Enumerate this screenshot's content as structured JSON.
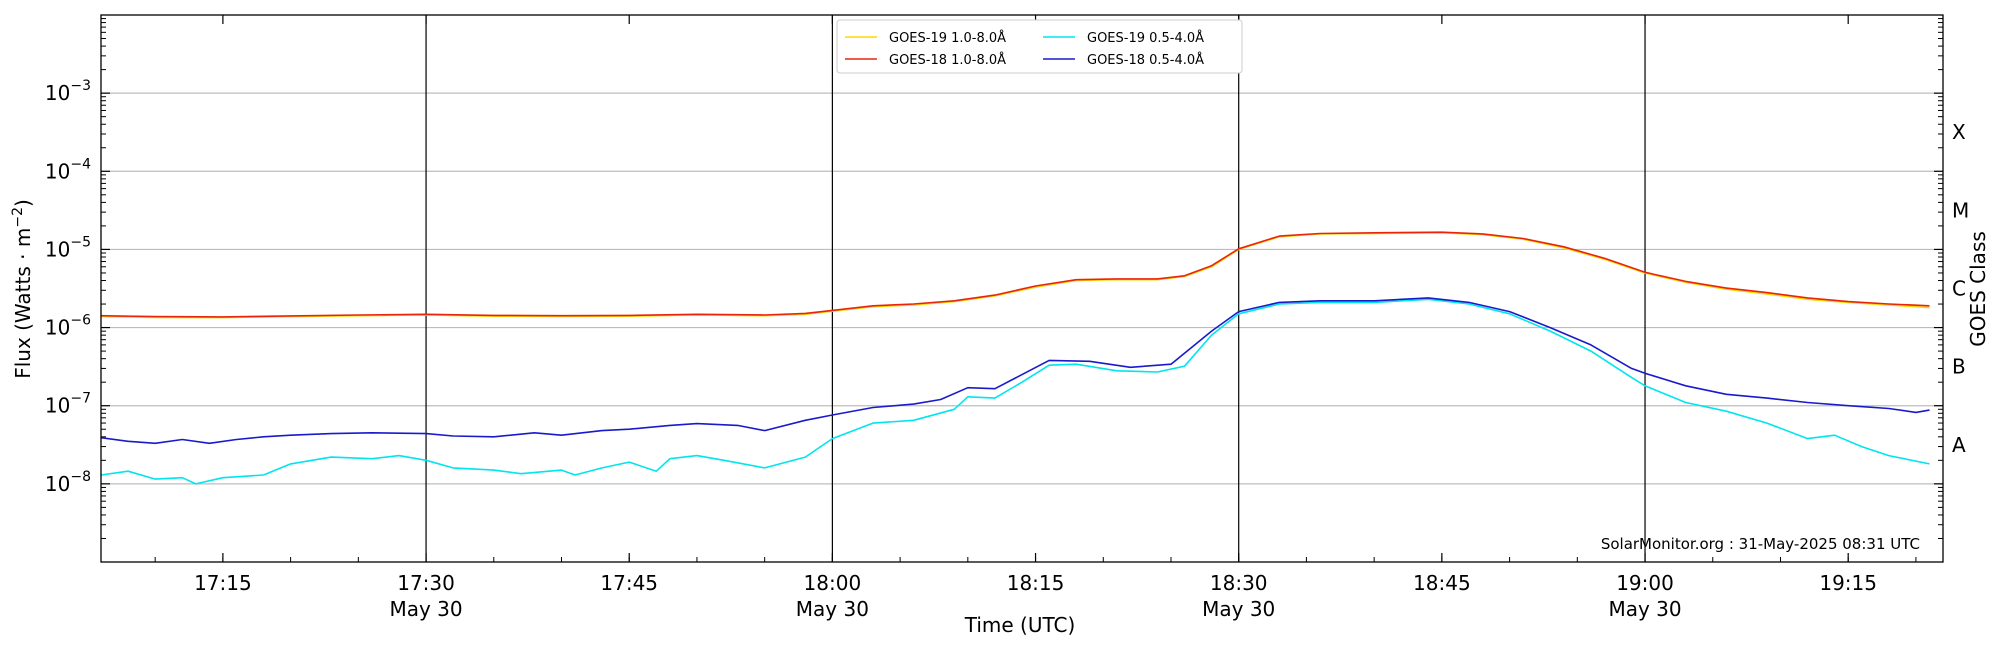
{
  "chart_data": {
    "type": "line",
    "xlabel": "Time (UTC)",
    "ylabel_main": "Flux (Watts · m",
    "ylabel_sup": "−2",
    "ylabel_close": ")",
    "right_label": "GOES Class",
    "credit": "SolarMonitor.org : 31-May-2025 08:31 UTC",
    "y_scale": "log",
    "ylim": [
      1e-09,
      0.01
    ],
    "xlim": [
      "17:06",
      "19:22"
    ],
    "grid": "horizontal at each decade",
    "legend_position": "top-center",
    "y_ticks": [
      {
        "value": 1e-08,
        "base": "10",
        "exp": "−8"
      },
      {
        "value": 1e-07,
        "base": "10",
        "exp": "−7"
      },
      {
        "value": 1e-06,
        "base": "10",
        "exp": "−6"
      },
      {
        "value": 1e-05,
        "base": "10",
        "exp": "−5"
      },
      {
        "value": 0.0001,
        "base": "10",
        "exp": "−4"
      },
      {
        "value": 0.001,
        "base": "10",
        "exp": "−3"
      }
    ],
    "x_ticks": [
      {
        "time": "17:15",
        "label": "17:15",
        "date": ""
      },
      {
        "time": "17:30",
        "label": "17:30",
        "date": "May 30"
      },
      {
        "time": "17:45",
        "label": "17:45",
        "date": ""
      },
      {
        "time": "18:00",
        "label": "18:00",
        "date": "May 30"
      },
      {
        "time": "18:15",
        "label": "18:15",
        "date": ""
      },
      {
        "time": "18:30",
        "label": "18:30",
        "date": "May 30"
      },
      {
        "time": "18:45",
        "label": "18:45",
        "date": ""
      },
      {
        "time": "19:00",
        "label": "19:00",
        "date": "May 30"
      },
      {
        "time": "19:15",
        "label": "19:15",
        "date": ""
      }
    ],
    "vertical_lines": [
      "17:30",
      "18:00",
      "18:30",
      "19:00"
    ],
    "goes_classes": [
      {
        "label": "A",
        "value": 3.16e-08
      },
      {
        "label": "B",
        "value": 3.16e-07
      },
      {
        "label": "C",
        "value": 3.16e-06
      },
      {
        "label": "M",
        "value": 3.16e-05
      },
      {
        "label": "X",
        "value": 0.000316
      }
    ],
    "series": [
      {
        "name": "GOES-19 1.0-8.0Å",
        "color": "#ffd700",
        "points": [
          [
            "17:06",
            1.38e-06
          ],
          [
            "17:10",
            1.35e-06
          ],
          [
            "17:15",
            1.34e-06
          ],
          [
            "17:20",
            1.38e-06
          ],
          [
            "17:25",
            1.42e-06
          ],
          [
            "17:30",
            1.45e-06
          ],
          [
            "17:35",
            1.4e-06
          ],
          [
            "17:40",
            1.39e-06
          ],
          [
            "17:45",
            1.4e-06
          ],
          [
            "17:50",
            1.45e-06
          ],
          [
            "17:55",
            1.42e-06
          ],
          [
            "17:58",
            1.48e-06
          ],
          [
            "18:00",
            1.62e-06
          ],
          [
            "18:03",
            1.85e-06
          ],
          [
            "18:06",
            1.95e-06
          ],
          [
            "18:09",
            2.15e-06
          ],
          [
            "18:12",
            2.55e-06
          ],
          [
            "18:15",
            3.3e-06
          ],
          [
            "18:18",
            4e-06
          ],
          [
            "18:21",
            4.1e-06
          ],
          [
            "18:24",
            4.1e-06
          ],
          [
            "18:26",
            4.5e-06
          ],
          [
            "18:28",
            6e-06
          ],
          [
            "18:30",
            1e-05
          ],
          [
            "18:33",
            1.45e-05
          ],
          [
            "18:36",
            1.58e-05
          ],
          [
            "18:40",
            1.6e-05
          ],
          [
            "18:45",
            1.63e-05
          ],
          [
            "18:48",
            1.55e-05
          ],
          [
            "18:51",
            1.35e-05
          ],
          [
            "18:54",
            1.05e-05
          ],
          [
            "18:57",
            7.5e-06
          ],
          [
            "19:00",
            5e-06
          ],
          [
            "19:03",
            3.8e-06
          ],
          [
            "19:06",
            3.1e-06
          ],
          [
            "19:09",
            2.7e-06
          ],
          [
            "19:12",
            2.3e-06
          ],
          [
            "19:15",
            2.1e-06
          ],
          [
            "19:18",
            1.95e-06
          ],
          [
            "19:21",
            1.8e-06
          ]
        ]
      },
      {
        "name": "GOES-18 1.0-8.0Å",
        "color": "#e8250c",
        "points": [
          [
            "17:06",
            1.42e-06
          ],
          [
            "17:10",
            1.38e-06
          ],
          [
            "17:15",
            1.37e-06
          ],
          [
            "17:20",
            1.41e-06
          ],
          [
            "17:25",
            1.45e-06
          ],
          [
            "17:30",
            1.48e-06
          ],
          [
            "17:35",
            1.43e-06
          ],
          [
            "17:40",
            1.42e-06
          ],
          [
            "17:45",
            1.43e-06
          ],
          [
            "17:50",
            1.48e-06
          ],
          [
            "17:55",
            1.45e-06
          ],
          [
            "17:58",
            1.52e-06
          ],
          [
            "18:00",
            1.66e-06
          ],
          [
            "18:03",
            1.9e-06
          ],
          [
            "18:06",
            2e-06
          ],
          [
            "18:09",
            2.2e-06
          ],
          [
            "18:12",
            2.6e-06
          ],
          [
            "18:15",
            3.4e-06
          ],
          [
            "18:18",
            4.1e-06
          ],
          [
            "18:21",
            4.2e-06
          ],
          [
            "18:24",
            4.2e-06
          ],
          [
            "18:26",
            4.6e-06
          ],
          [
            "18:28",
            6.2e-06
          ],
          [
            "18:30",
            1.02e-05
          ],
          [
            "18:33",
            1.48e-05
          ],
          [
            "18:36",
            1.6e-05
          ],
          [
            "18:40",
            1.63e-05
          ],
          [
            "18:45",
            1.66e-05
          ],
          [
            "18:48",
            1.58e-05
          ],
          [
            "18:51",
            1.38e-05
          ],
          [
            "18:54",
            1.08e-05
          ],
          [
            "18:57",
            7.7e-06
          ],
          [
            "19:00",
            5.1e-06
          ],
          [
            "19:03",
            3.9e-06
          ],
          [
            "19:06",
            3.2e-06
          ],
          [
            "19:09",
            2.8e-06
          ],
          [
            "19:12",
            2.4e-06
          ],
          [
            "19:15",
            2.15e-06
          ],
          [
            "19:18",
            2e-06
          ],
          [
            "19:21",
            1.9e-06
          ]
        ]
      },
      {
        "name": "GOES-19 0.5-4.0Å",
        "color": "#00e5ee",
        "points": [
          [
            "17:06",
            1.3e-08
          ],
          [
            "17:08",
            1.45e-08
          ],
          [
            "17:10",
            1.15e-08
          ],
          [
            "17:12",
            1.2e-08
          ],
          [
            "17:13",
            1e-08
          ],
          [
            "17:15",
            1.2e-08
          ],
          [
            "17:18",
            1.3e-08
          ],
          [
            "17:20",
            1.8e-08
          ],
          [
            "17:23",
            2.2e-08
          ],
          [
            "17:26",
            2.1e-08
          ],
          [
            "17:28",
            2.3e-08
          ],
          [
            "17:30",
            2e-08
          ],
          [
            "17:32",
            1.6e-08
          ],
          [
            "17:35",
            1.5e-08
          ],
          [
            "17:37",
            1.35e-08
          ],
          [
            "17:40",
            1.5e-08
          ],
          [
            "17:41",
            1.3e-08
          ],
          [
            "17:43",
            1.6e-08
          ],
          [
            "17:45",
            1.9e-08
          ],
          [
            "17:47",
            1.45e-08
          ],
          [
            "17:48",
            2.1e-08
          ],
          [
            "17:50",
            2.3e-08
          ],
          [
            "17:52",
            2e-08
          ],
          [
            "17:55",
            1.6e-08
          ],
          [
            "17:58",
            2.2e-08
          ],
          [
            "18:00",
            3.8e-08
          ],
          [
            "18:03",
            6e-08
          ],
          [
            "18:06",
            6.5e-08
          ],
          [
            "18:09",
            9e-08
          ],
          [
            "18:10",
            1.3e-07
          ],
          [
            "18:12",
            1.25e-07
          ],
          [
            "18:14",
            2e-07
          ],
          [
            "18:16",
            3.3e-07
          ],
          [
            "18:18",
            3.4e-07
          ],
          [
            "18:21",
            2.8e-07
          ],
          [
            "18:24",
            2.7e-07
          ],
          [
            "18:26",
            3.2e-07
          ],
          [
            "18:28",
            8e-07
          ],
          [
            "18:30",
            1.5e-06
          ],
          [
            "18:33",
            2e-06
          ],
          [
            "18:36",
            2.1e-06
          ],
          [
            "18:40",
            2.1e-06
          ],
          [
            "18:44",
            2.3e-06
          ],
          [
            "18:47",
            2e-06
          ],
          [
            "18:50",
            1.5e-06
          ],
          [
            "18:53",
            9e-07
          ],
          [
            "18:56",
            5e-07
          ],
          [
            "18:59",
            2.3e-07
          ],
          [
            "19:00",
            1.8e-07
          ],
          [
            "19:03",
            1.1e-07
          ],
          [
            "19:06",
            8.5e-08
          ],
          [
            "19:09",
            6e-08
          ],
          [
            "19:12",
            3.8e-08
          ],
          [
            "19:14",
            4.2e-08
          ],
          [
            "19:16",
            3e-08
          ],
          [
            "19:18",
            2.3e-08
          ],
          [
            "19:21",
            1.8e-08
          ]
        ]
      },
      {
        "name": "GOES-18 0.5-4.0Å",
        "color": "#1a1acd",
        "points": [
          [
            "17:06",
            3.9e-08
          ],
          [
            "17:08",
            3.5e-08
          ],
          [
            "17:10",
            3.3e-08
          ],
          [
            "17:12",
            3.7e-08
          ],
          [
            "17:14",
            3.3e-08
          ],
          [
            "17:16",
            3.7e-08
          ],
          [
            "17:18",
            4e-08
          ],
          [
            "17:20",
            4.2e-08
          ],
          [
            "17:23",
            4.4e-08
          ],
          [
            "17:26",
            4.5e-08
          ],
          [
            "17:30",
            4.4e-08
          ],
          [
            "17:32",
            4.1e-08
          ],
          [
            "17:35",
            4e-08
          ],
          [
            "17:38",
            4.5e-08
          ],
          [
            "17:40",
            4.2e-08
          ],
          [
            "17:43",
            4.8e-08
          ],
          [
            "17:45",
            5e-08
          ],
          [
            "17:48",
            5.6e-08
          ],
          [
            "17:50",
            5.9e-08
          ],
          [
            "17:53",
            5.6e-08
          ],
          [
            "17:55",
            4.8e-08
          ],
          [
            "17:58",
            6.5e-08
          ],
          [
            "18:00",
            7.6e-08
          ],
          [
            "18:03",
            9.5e-08
          ],
          [
            "18:06",
            1.05e-07
          ],
          [
            "18:08",
            1.2e-07
          ],
          [
            "18:10",
            1.7e-07
          ],
          [
            "18:12",
            1.65e-07
          ],
          [
            "18:14",
            2.5e-07
          ],
          [
            "18:16",
            3.8e-07
          ],
          [
            "18:19",
            3.7e-07
          ],
          [
            "18:22",
            3.1e-07
          ],
          [
            "18:25",
            3.4e-07
          ],
          [
            "18:28",
            9e-07
          ],
          [
            "18:30",
            1.6e-06
          ],
          [
            "18:33",
            2.1e-06
          ],
          [
            "18:36",
            2.2e-06
          ],
          [
            "18:40",
            2.2e-06
          ],
          [
            "18:44",
            2.4e-06
          ],
          [
            "18:47",
            2.1e-06
          ],
          [
            "18:50",
            1.6e-06
          ],
          [
            "18:53",
            1e-06
          ],
          [
            "18:56",
            6e-07
          ],
          [
            "18:59",
            3e-07
          ],
          [
            "19:00",
            2.6e-07
          ],
          [
            "19:03",
            1.8e-07
          ],
          [
            "19:06",
            1.4e-07
          ],
          [
            "19:09",
            1.25e-07
          ],
          [
            "19:12",
            1.1e-07
          ],
          [
            "19:15",
            1e-07
          ],
          [
            "19:18",
            9.2e-08
          ],
          [
            "19:20",
            8.2e-08
          ],
          [
            "19:21",
            8.8e-08
          ]
        ]
      }
    ]
  }
}
